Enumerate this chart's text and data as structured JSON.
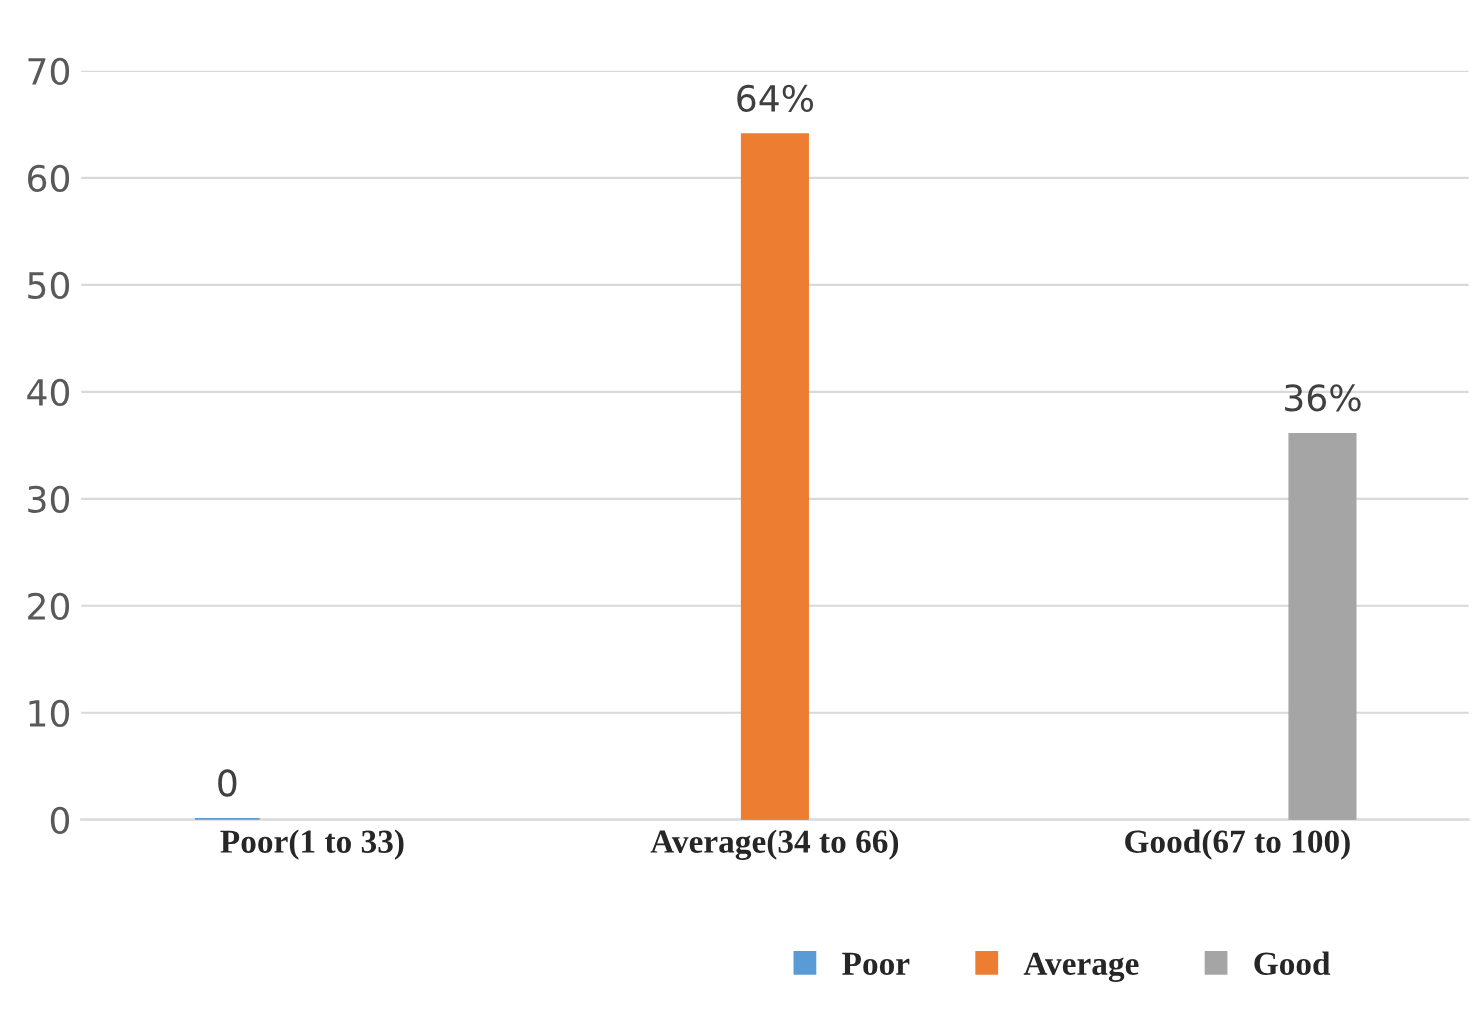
{
  "chart_data": {
    "type": "bar",
    "categories": [
      "Poor(1 to 33)",
      "Average(34 to 66)",
      "Good(67 to 100)"
    ],
    "series": [
      {
        "name": "Poor",
        "color": "#5b9bd5",
        "values": [
          0,
          null,
          null
        ],
        "value_labels": [
          "0",
          null,
          null
        ]
      },
      {
        "name": "Average",
        "color": "#ed7d31",
        "values": [
          null,
          64,
          null
        ],
        "value_labels": [
          null,
          "64%",
          null
        ]
      },
      {
        "name": "Good",
        "color": "#a5a5a5",
        "values": [
          null,
          null,
          36
        ],
        "value_labels": [
          null,
          null,
          "36%"
        ]
      }
    ],
    "ylim": [
      0,
      70
    ],
    "yticks": [
      0,
      10,
      20,
      30,
      40,
      50,
      60,
      70
    ],
    "grid": "y",
    "legend": "bottom"
  }
}
